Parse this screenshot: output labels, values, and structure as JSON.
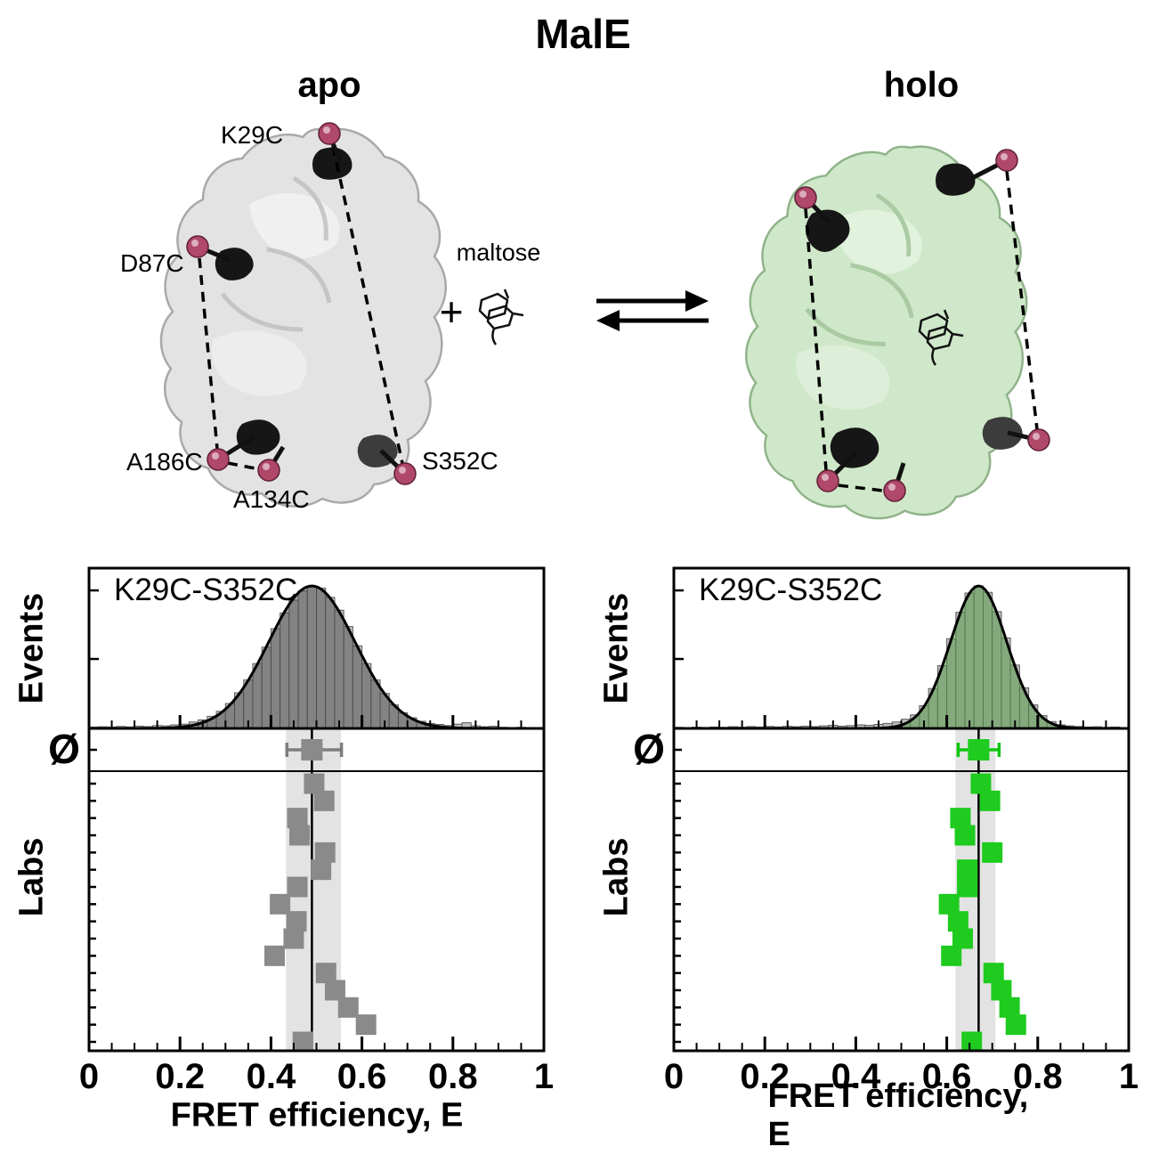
{
  "header": {
    "title": "MalE",
    "apo_label": "apo",
    "holo_label": "holo"
  },
  "reaction": {
    "plus": "+",
    "ligand": "maltose"
  },
  "residues": {
    "k29c": "K29C",
    "d87c": "D87C",
    "a186c": "A186C",
    "a134c": "A134C",
    "s352c": "S352C"
  },
  "chart_data": [
    {
      "type": "bar",
      "subtype": "fret-histogram-with-lab-scatter",
      "condition": "apo",
      "pair_label": "K29C-S352C",
      "ylabel_top": "Events",
      "ylabel_bottom": "Labs",
      "avg_symbol": "Ø",
      "xlabel": "FRET efficiency, E",
      "xticks": [
        0,
        0.2,
        0.4,
        0.6,
        0.8,
        1
      ],
      "xtick_labels": [
        "0",
        "0.2",
        "0.4",
        "0.6",
        "0.8",
        "1"
      ],
      "xlim": [
        0,
        1
      ],
      "bin_start": 0,
      "bin_width": 0.02,
      "bar_heights": [
        0.01,
        0.012,
        0.01,
        0.014,
        0.011,
        0.016,
        0.013,
        0.02,
        0.018,
        0.025,
        0.03,
        0.045,
        0.06,
        0.085,
        0.12,
        0.175,
        0.25,
        0.34,
        0.455,
        0.57,
        0.7,
        0.81,
        0.9,
        0.965,
        1.0,
        0.985,
        0.92,
        0.83,
        0.715,
        0.58,
        0.455,
        0.34,
        0.245,
        0.165,
        0.11,
        0.075,
        0.05,
        0.035,
        0.028,
        0.02,
        0.03,
        0.04,
        0.018,
        0.012,
        0.015,
        0.008,
        0.006,
        0.008,
        0.005,
        0.006
      ],
      "fit": {
        "mean": 0.49,
        "sigma": 0.095,
        "amplitude": 1.0
      },
      "consensus": {
        "mean": 0.49,
        "err_lo": 0.435,
        "err_hi": 0.555,
        "band_lo": 0.433,
        "band_hi": 0.554
      },
      "lab_values": [
        0.495,
        0.517,
        0.458,
        0.463,
        0.519,
        0.51,
        0.458,
        0.42,
        0.456,
        0.45,
        0.408,
        0.521,
        0.541,
        0.57,
        0.609,
        0.47
      ],
      "colors": {
        "bar": "#bdbdbd",
        "bar_edge": "#5c5c5c",
        "overlay": "rgba(60,60,60,0.45)",
        "curve": "#000000",
        "marker": "#8a8a8a",
        "errbar": "#7d7d7d",
        "band": "#e3e3e3"
      }
    },
    {
      "type": "bar",
      "subtype": "fret-histogram-with-lab-scatter",
      "condition": "holo",
      "pair_label": "K29C-S352C",
      "ylabel_top": "Events",
      "ylabel_bottom": "Labs",
      "avg_symbol": "Ø",
      "xlabel": "FRET efficiency, E",
      "xticks": [
        0,
        0.2,
        0.4,
        0.6,
        0.8,
        1
      ],
      "xtick_labels": [
        "0",
        "0.2",
        "0.4",
        "0.6",
        "0.8",
        "1"
      ],
      "xlim": [
        0,
        1
      ],
      "bin_start": 0,
      "bin_width": 0.02,
      "bar_heights": [
        0.008,
        0.006,
        0.009,
        0.007,
        0.01,
        0.008,
        0.012,
        0.009,
        0.013,
        0.01,
        0.014,
        0.011,
        0.015,
        0.012,
        0.016,
        0.013,
        0.018,
        0.022,
        0.016,
        0.02,
        0.025,
        0.022,
        0.028,
        0.035,
        0.045,
        0.065,
        0.095,
        0.16,
        0.28,
        0.44,
        0.63,
        0.815,
        0.95,
        1.0,
        0.955,
        0.82,
        0.635,
        0.445,
        0.285,
        0.165,
        0.09,
        0.048,
        0.025,
        0.018,
        0.014,
        0.01,
        0.012,
        0.008,
        0.01,
        0.006
      ],
      "fit": {
        "mean": 0.67,
        "sigma": 0.062,
        "amplitude": 1.0
      },
      "consensus": {
        "mean": 0.67,
        "err_lo": 0.625,
        "err_hi": 0.715,
        "band_lo": 0.619,
        "band_hi": 0.707
      },
      "lab_values": [
        0.675,
        0.695,
        0.63,
        0.64,
        0.7,
        0.645,
        0.645,
        0.605,
        0.625,
        0.635,
        0.61,
        0.703,
        0.72,
        0.738,
        0.752,
        0.655
      ],
      "colors": {
        "bar": "#bdbdbd",
        "bar_edge": "#5c5c5c",
        "overlay": "rgba(75,150,62,0.50)",
        "curve": "#000000",
        "marker": "#1ecb1e",
        "errbar": "#0fc50f",
        "band": "#e3e3e3"
      }
    }
  ]
}
